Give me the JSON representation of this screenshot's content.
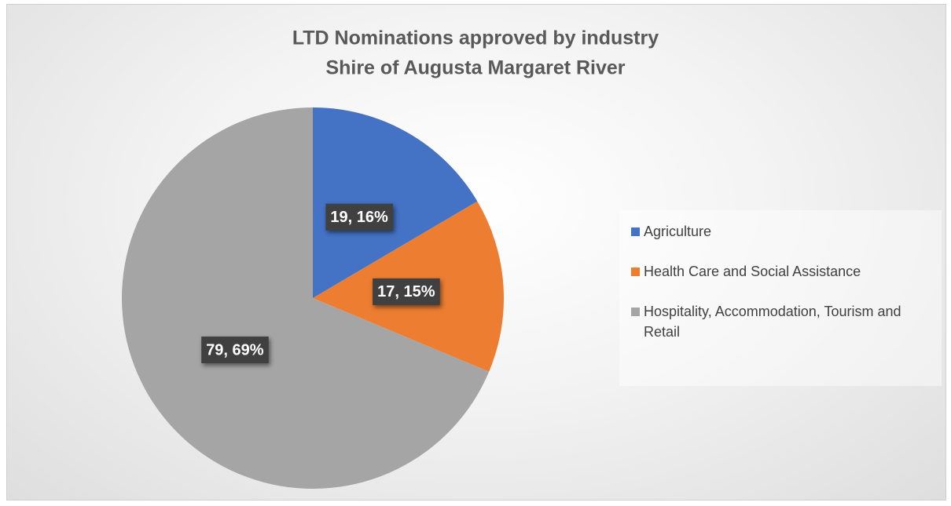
{
  "chart_data": {
    "type": "pie",
    "title": "LTD Nominations approved by industry",
    "subtitle": "Shire of Augusta Margaret River",
    "categories": [
      "Agriculture",
      "Health Care and Social Assistance",
      "Hospitality, Accommodation, Tourism and Retail"
    ],
    "values": [
      19,
      17,
      79
    ],
    "value_labels": [
      "19, 16%",
      "17, 15%",
      "79, 69%"
    ],
    "colors": [
      "#4472c4",
      "#ed7d31",
      "#a5a5a5"
    ],
    "legend": "right"
  }
}
